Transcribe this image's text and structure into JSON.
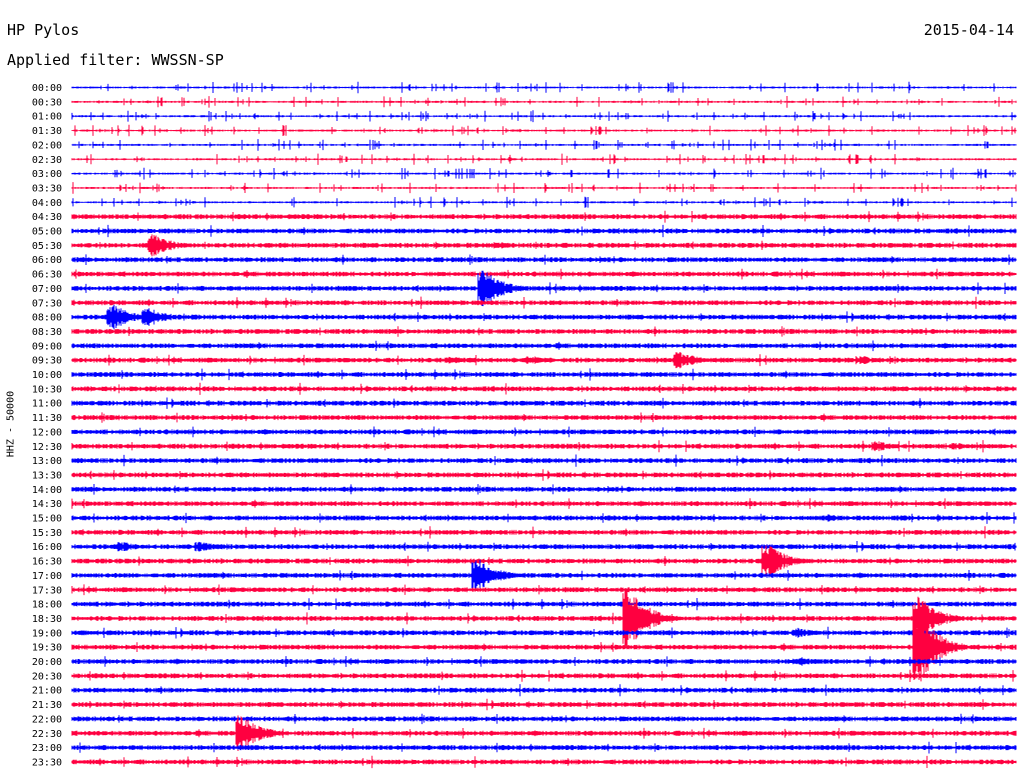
{
  "header": {
    "station": "HP Pylos",
    "date": "2015-04-14",
    "filter_label": "Applied filter: WWSSN-SP"
  },
  "chart_data": {
    "type": "line",
    "title": "HP Pylos",
    "subtitle": "Applied filter: WWSSN-SP",
    "ylabel": "HHZ - 50000",
    "row_labels": [
      "00:00",
      "00:30",
      "01:00",
      "01:30",
      "02:00",
      "02:30",
      "03:00",
      "03:30",
      "04:00",
      "04:30",
      "05:00",
      "05:30",
      "06:00",
      "06:30",
      "07:00",
      "07:30",
      "08:00",
      "08:30",
      "09:00",
      "09:30",
      "10:00",
      "10:30",
      "11:00",
      "11:30",
      "12:00",
      "12:30",
      "13:00",
      "13:30",
      "14:00",
      "14:30",
      "15:00",
      "15:30",
      "16:00",
      "16:30",
      "17:00",
      "17:30",
      "18:00",
      "18:30",
      "19:00",
      "19:30",
      "20:00",
      "20:30",
      "21:00",
      "21:30",
      "22:00",
      "22:30",
      "23:00",
      "23:30"
    ],
    "colors": [
      "#0000ff",
      "#ff0040"
    ],
    "trace_minutes": 30,
    "events": [
      {
        "row": "05:30",
        "minute": 2.5,
        "amplitude": 0.8
      },
      {
        "row": "05:30",
        "minute": 13.5,
        "amplitude": 0.25
      },
      {
        "row": "07:00",
        "minute": 13.0,
        "amplitude": 1.3
      },
      {
        "row": "08:00",
        "minute": 1.2,
        "amplitude": 0.9
      },
      {
        "row": "08:00",
        "minute": 2.3,
        "amplitude": 0.7
      },
      {
        "row": "09:30",
        "minute": 12.0,
        "amplitude": 0.25
      },
      {
        "row": "09:30",
        "minute": 14.5,
        "amplitude": 0.3
      },
      {
        "row": "09:30",
        "minute": 19.2,
        "amplitude": 0.6
      },
      {
        "row": "09:30",
        "minute": 25.0,
        "amplitude": 0.3
      },
      {
        "row": "12:30",
        "minute": 25.5,
        "amplitude": 0.35
      },
      {
        "row": "12:30",
        "minute": 28.0,
        "amplitude": 0.25
      },
      {
        "row": "15:00",
        "minute": 24.0,
        "amplitude": 0.25
      },
      {
        "row": "16:00",
        "minute": 1.5,
        "amplitude": 0.35
      },
      {
        "row": "16:00",
        "minute": 4.0,
        "amplitude": 0.35
      },
      {
        "row": "16:30",
        "minute": 22.0,
        "amplitude": 1.2
      },
      {
        "row": "17:00",
        "minute": 12.8,
        "amplitude": 1.2
      },
      {
        "row": "18:30",
        "minute": 17.6,
        "amplitude": 2.2
      },
      {
        "row": "18:30",
        "minute": 26.8,
        "amplitude": 1.6
      },
      {
        "row": "19:00",
        "minute": 23.0,
        "amplitude": 0.35
      },
      {
        "row": "19:30",
        "minute": 26.8,
        "amplitude": 2.6
      },
      {
        "row": "20:00",
        "minute": 23.0,
        "amplitude": 0.35
      },
      {
        "row": "22:30",
        "minute": 5.3,
        "amplitude": 1.3
      }
    ]
  }
}
